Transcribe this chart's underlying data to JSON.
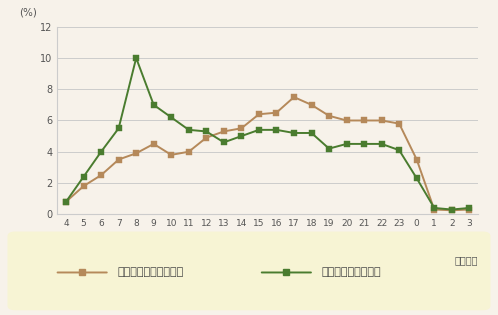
{
  "x_labels": [
    "4",
    "5",
    "6",
    "7",
    "8",
    "9",
    "10",
    "11",
    "12",
    "13",
    "14",
    "15",
    "16",
    "17",
    "18",
    "19",
    "20",
    "21",
    "22",
    "23",
    "0",
    "1",
    "2",
    "3"
  ],
  "x_indices": [
    0,
    1,
    2,
    3,
    4,
    5,
    6,
    7,
    8,
    9,
    10,
    11,
    12,
    13,
    14,
    15,
    16,
    17,
    18,
    19,
    20,
    21,
    22,
    23
  ],
  "chocolate": [
    0.8,
    1.8,
    2.5,
    3.5,
    3.9,
    4.5,
    3.8,
    4.0,
    4.9,
    5.3,
    5.5,
    6.4,
    6.5,
    7.5,
    7.0,
    6.3,
    6.0,
    6.0,
    6.0,
    5.8,
    3.5,
    0.3,
    0.25,
    0.3
  ],
  "coffee": [
    0.8,
    2.4,
    4.0,
    5.5,
    10.0,
    7.0,
    6.2,
    5.4,
    5.3,
    4.6,
    5.0,
    5.4,
    5.4,
    5.2,
    5.2,
    4.2,
    4.5,
    4.5,
    4.5,
    4.1,
    2.3,
    0.4,
    0.3,
    0.4
  ],
  "chocolate_color": "#b5895a",
  "coffee_color": "#4a7c2f",
  "ylim": [
    0,
    12
  ],
  "yticks": [
    0,
    2,
    4,
    6,
    8,
    10,
    12
  ],
  "ylabel": "(%)",
  "xlabel": "（時間）",
  "legend_chocolate": "チョコレートドリンク",
  "legend_coffee": "コーヒー系ドリンク",
  "bg_outer": "#f7f2ea",
  "bg_legend": "#f7f4d4",
  "grid_color": "#cccccc",
  "border_color": "#d4b896",
  "tick_color": "#555555",
  "marker": "s",
  "marker_size": 4,
  "line_width": 1.4
}
